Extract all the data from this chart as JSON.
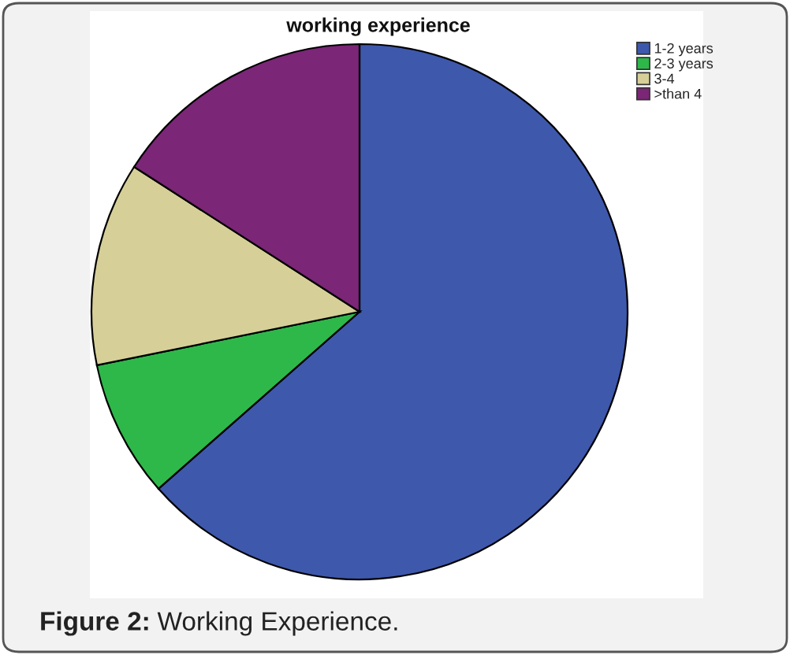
{
  "chart_data": {
    "type": "pie",
    "title": "working experience",
    "categories": [
      "1-2 years",
      "2-3 years",
      "3-4",
      ">than 4"
    ],
    "values": [
      63.5,
      8.3,
      12.3,
      15.9
    ],
    "colors": [
      "#3e58ac",
      "#2eb84a",
      "#d6cf98",
      "#7b2677"
    ],
    "legend": "top right",
    "annotations": [
      "Figure 2: Working Experience."
    ]
  }
}
